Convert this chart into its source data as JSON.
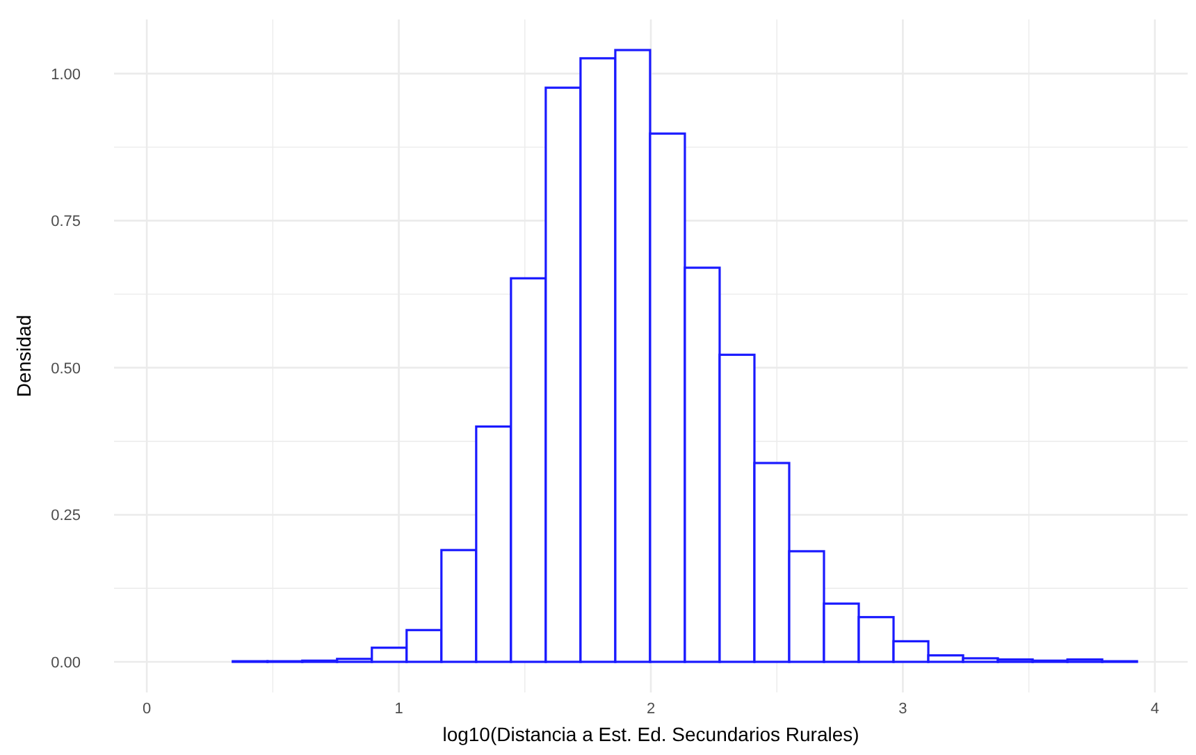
{
  "chart_data": {
    "type": "histogram",
    "xlabel": "log10(Distancia a Est. Ed. Secundarios Rurales)",
    "ylabel": "Densidad",
    "color": "#1a1aff",
    "bins": [
      0.065,
      0.203,
      0.341,
      0.479,
      0.617,
      0.755,
      0.893,
      1.031,
      1.169,
      1.307,
      1.445,
      1.583,
      1.721,
      1.859,
      1.997,
      2.135,
      2.273,
      2.411,
      2.549,
      2.687,
      2.825,
      2.963,
      3.101,
      3.239,
      3.377,
      3.515,
      3.653,
      3.791,
      3.929
    ],
    "values": [
      0,
      0,
      0.001,
      0.001,
      0.002,
      0.005,
      0.024,
      0.054,
      0.19,
      0.4,
      0.652,
      0.976,
      1.026,
      1.04,
      0.898,
      0.67,
      0.522,
      0.338,
      0.188,
      0.099,
      0.076,
      0.035,
      0.011,
      0.006,
      0.004,
      0.002,
      0.004,
      0.001
    ],
    "xlim": [
      -0.13,
      4.13
    ],
    "ylim": [
      -0.052,
      1.092
    ],
    "xticks": [
      0,
      {
        "value": 0.5,
        "label": null
      },
      1,
      {
        "value": 1.5,
        "label": null
      },
      2,
      {
        "value": 2.5,
        "label": null
      },
      3,
      {
        "value": 3.5,
        "label": null
      },
      4
    ],
    "yticks": [
      {
        "value": 0,
        "label": "0.00"
      },
      {
        "value": 0.125,
        "label": null
      },
      {
        "value": 0.25,
        "label": "0.25"
      },
      {
        "value": 0.375,
        "label": null
      },
      {
        "value": 0.5,
        "label": "0.50"
      },
      {
        "value": 0.625,
        "label": null
      },
      {
        "value": 0.75,
        "label": "0.75"
      },
      {
        "value": 0.875,
        "label": null
      },
      {
        "value": 1,
        "label": "1.00"
      }
    ],
    "grid": true
  }
}
